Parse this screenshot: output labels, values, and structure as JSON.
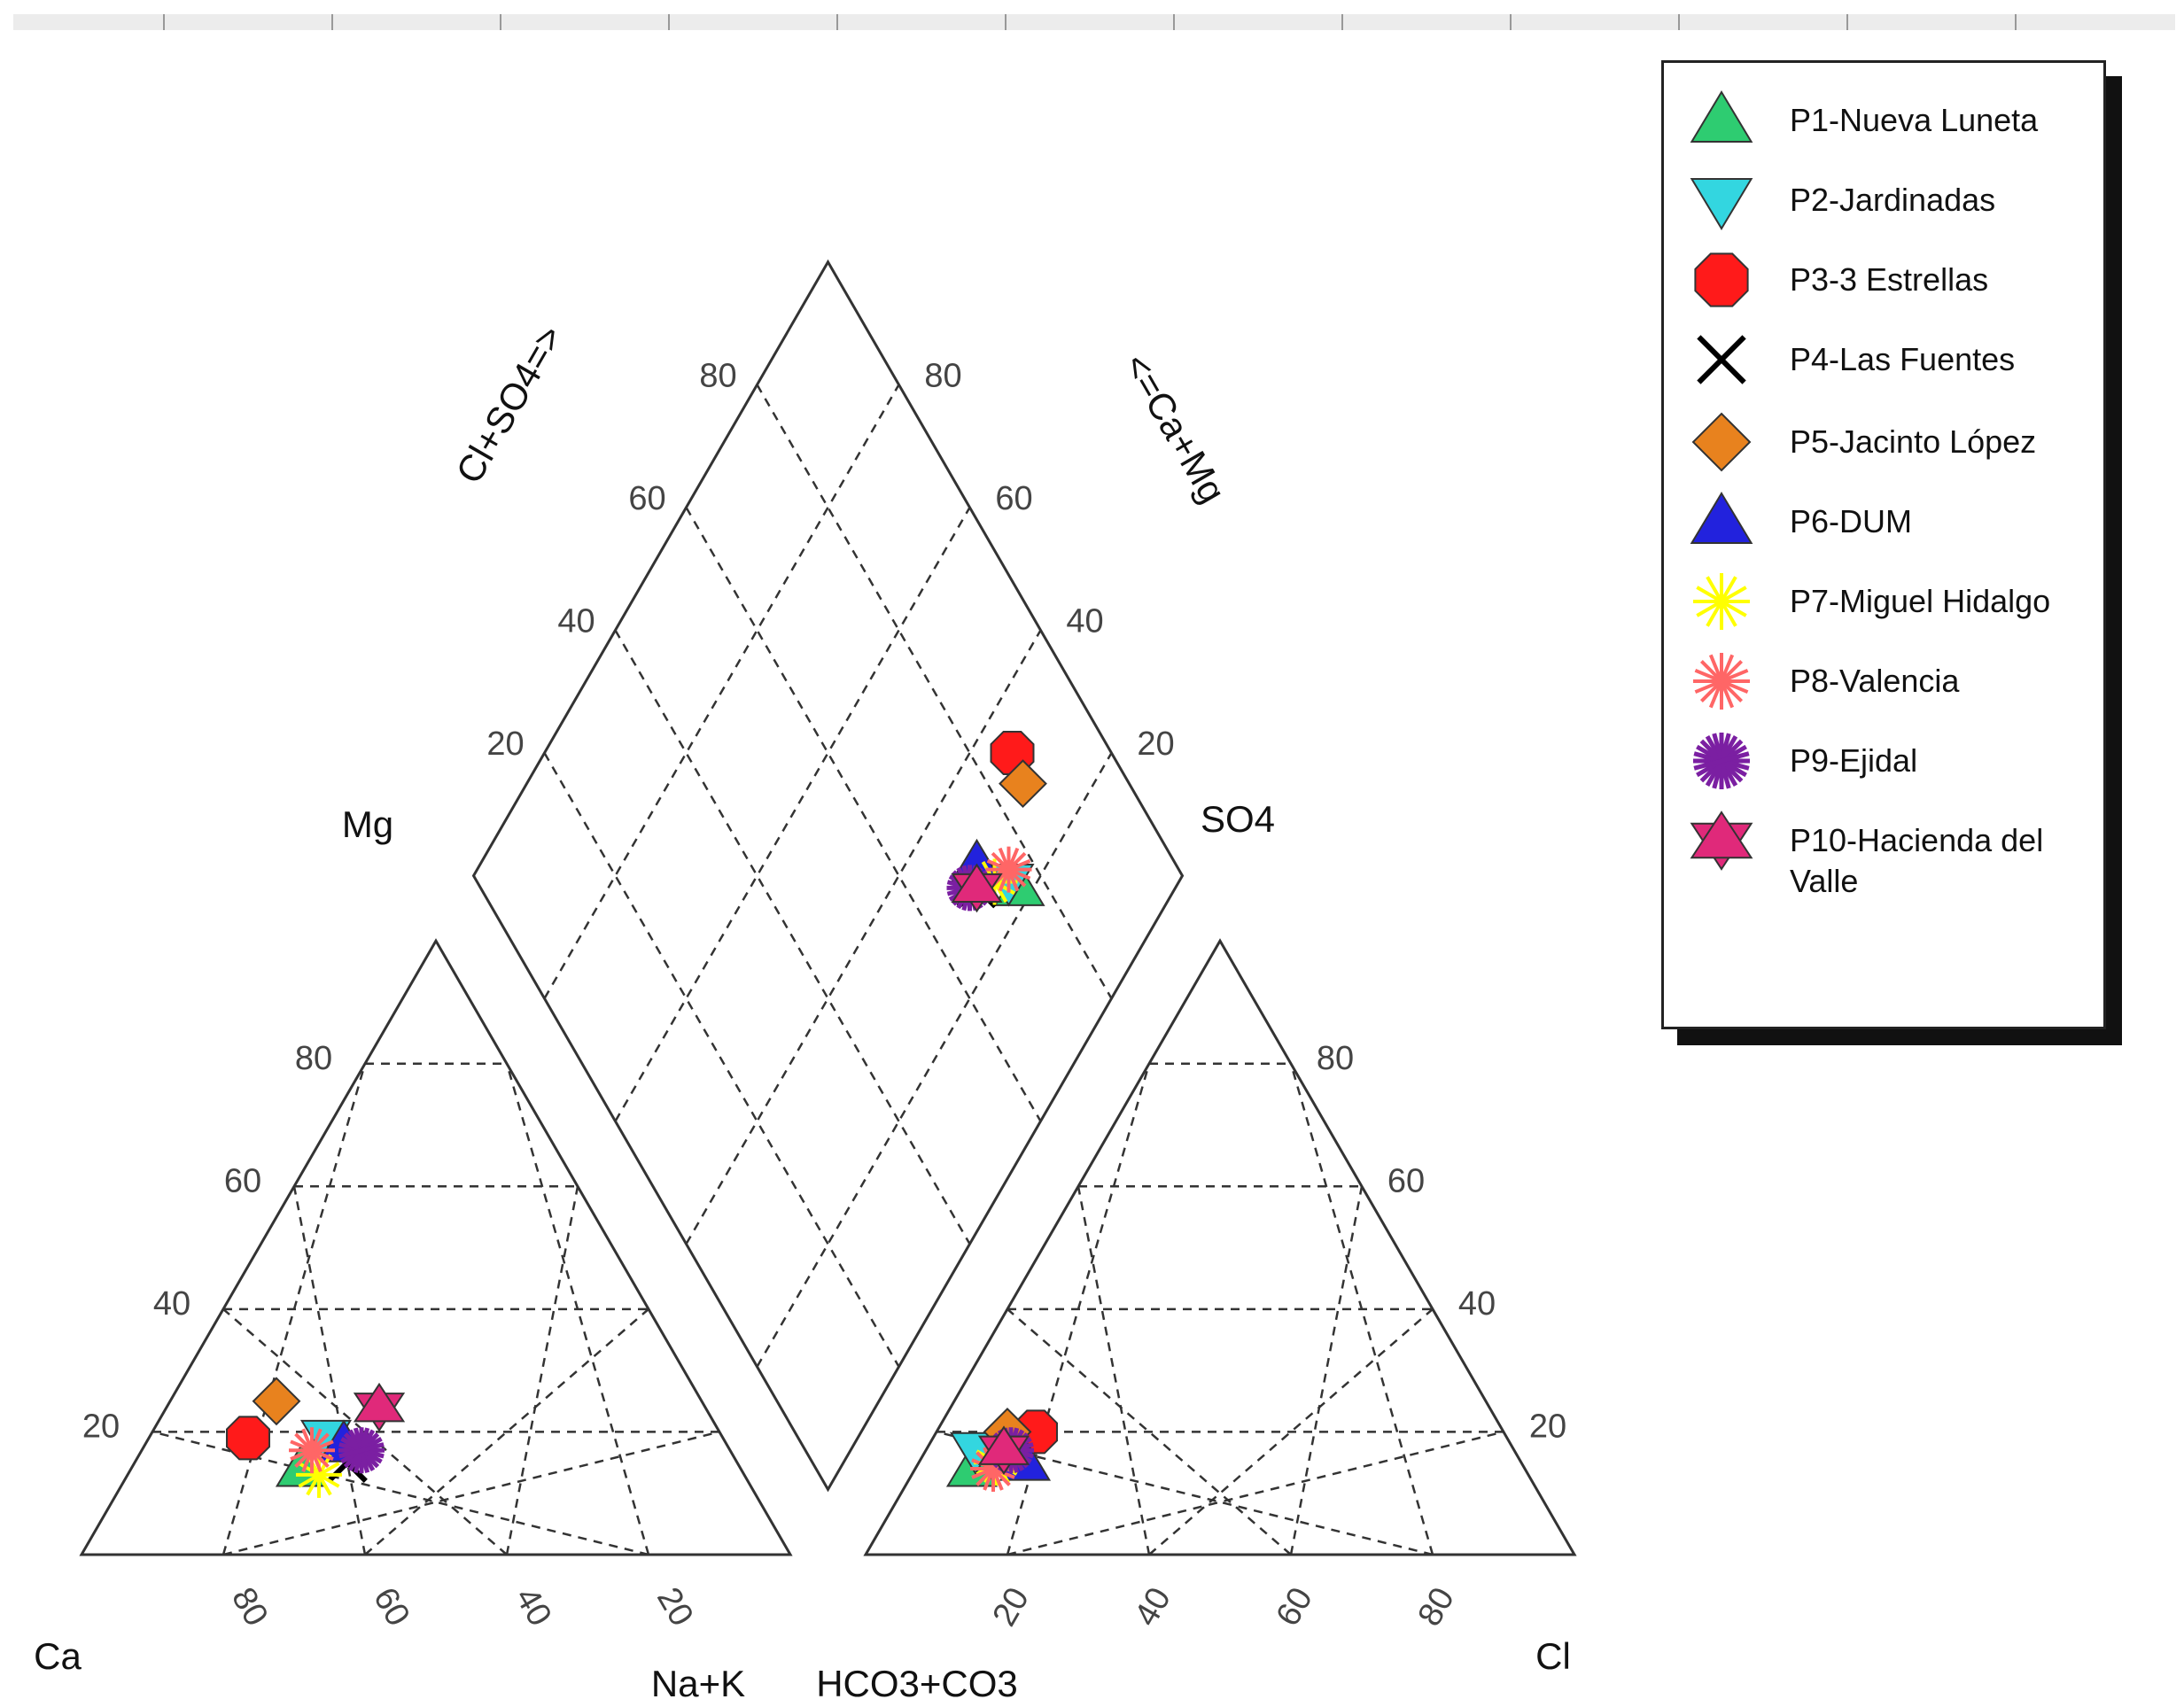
{
  "chart_data": {
    "type": "scatter",
    "title": "",
    "subtype": "piper_diagram",
    "triangle_cations": {
      "corner_labels": {
        "left": "Ca",
        "top": "Mg",
        "right": "Na+K"
      },
      "tick_labels_left": [
        "20",
        "40",
        "60",
        "80"
      ],
      "tick_labels_bottom": [
        "80",
        "60",
        "40",
        "20"
      ],
      "grid": true
    },
    "triangle_anions": {
      "corner_labels": {
        "left": "HCO3+CO3",
        "top": "SO4",
        "right": "Cl"
      },
      "tick_labels_right": [
        "20",
        "40",
        "60",
        "80"
      ],
      "tick_labels_bottom": [
        "20",
        "40",
        "60",
        "80"
      ],
      "grid": true
    },
    "diamond": {
      "axis_labels": {
        "left": "Cl+SO4=>",
        "right": "<=Ca+Mg"
      },
      "tick_labels_left": [
        "20",
        "40",
        "60",
        "80"
      ],
      "tick_labels_right": [
        "20",
        "40",
        "60",
        "80"
      ],
      "grid": true
    },
    "series": [
      {
        "name": "P1-Nueva Luneta",
        "symbol": "triangle-up",
        "color": "#2ecc71",
        "cation": {
          "Ca": 62,
          "Mg": 14,
          "NaK": 24
        },
        "anion": {
          "HCO3CO3": 78,
          "SO4": 14,
          "Cl": 8
        }
      },
      {
        "name": "P2-Jardinadas",
        "symbol": "triangle-down",
        "color": "#33d6e0",
        "cation": {
          "Ca": 56,
          "Mg": 19,
          "NaK": 25
        },
        "anion": {
          "HCO3CO3": 76,
          "SO4": 17,
          "Cl": 7
        }
      },
      {
        "name": "P3-3 Estrellas",
        "symbol": "octagon",
        "color": "#ff1a1a",
        "cation": {
          "Ca": 67,
          "Mg": 19,
          "NaK": 14
        },
        "anion": {
          "HCO3CO3": 66,
          "SO4": 20,
          "Cl": 14
        }
      },
      {
        "name": "P4-Las Fuentes",
        "symbol": "x",
        "color": "#000000",
        "cation": {
          "Ca": 55,
          "Mg": 15,
          "NaK": 30
        },
        "anion": {
          "HCO3CO3": 72,
          "SO4": 16,
          "Cl": 12
        }
      },
      {
        "name": "P5-Jacinto López",
        "symbol": "diamond",
        "color": "#e8821e",
        "cation": {
          "Ca": 60,
          "Mg": 25,
          "NaK": 15
        },
        "anion": {
          "HCO3CO3": 70,
          "SO4": 20,
          "Cl": 10
        }
      },
      {
        "name": "P6-DUM",
        "symbol": "triangle-up",
        "color": "#2222dd",
        "cation": {
          "Ca": 54,
          "Mg": 18,
          "NaK": 28
        },
        "anion": {
          "HCO3CO3": 70,
          "SO4": 15,
          "Cl": 15
        }
      },
      {
        "name": "P7-Miguel Hidalgo",
        "symbol": "asterisk",
        "color": "#ffff00",
        "cation": {
          "Ca": 60,
          "Mg": 13,
          "NaK": 27
        },
        "anion": {
          "HCO3CO3": 74,
          "SO4": 15,
          "Cl": 11
        }
      },
      {
        "name": "P8-Valencia",
        "symbol": "asterisk-thin",
        "color": "#ff6666",
        "cation": {
          "Ca": 59,
          "Mg": 17,
          "NaK": 24
        },
        "anion": {
          "HCO3CO3": 75,
          "SO4": 14,
          "Cl": 11
        }
      },
      {
        "name": "P9-Ejidal",
        "symbol": "asterisk-bold",
        "color": "#7b1fa2",
        "cation": {
          "Ca": 52,
          "Mg": 17,
          "NaK": 31
        },
        "anion": {
          "HCO3CO3": 71,
          "SO4": 17,
          "Cl": 12
        }
      },
      {
        "name": "P10-Hacienda del Valle",
        "symbol": "hexagram",
        "color": "#e0297a",
        "cation": {
          "Ca": 46,
          "Mg": 24,
          "NaK": 30
        },
        "anion": {
          "HCO3CO3": 72,
          "SO4": 17,
          "Cl": 11
        }
      }
    ],
    "legend_position": "top-right"
  },
  "legend": {
    "items": [
      {
        "label": "P1-Nueva Luneta"
      },
      {
        "label": "P2-Jardinadas"
      },
      {
        "label": "P3-3 Estrellas"
      },
      {
        "label": "P4-Las Fuentes"
      },
      {
        "label": "P5-Jacinto López"
      },
      {
        "label": "P6-DUM"
      },
      {
        "label": "P7-Miguel Hidalgo"
      },
      {
        "label": "P8-Valencia"
      },
      {
        "label": "P9-Ejidal"
      },
      {
        "label": "P10-Hacienda del Valle"
      }
    ]
  }
}
